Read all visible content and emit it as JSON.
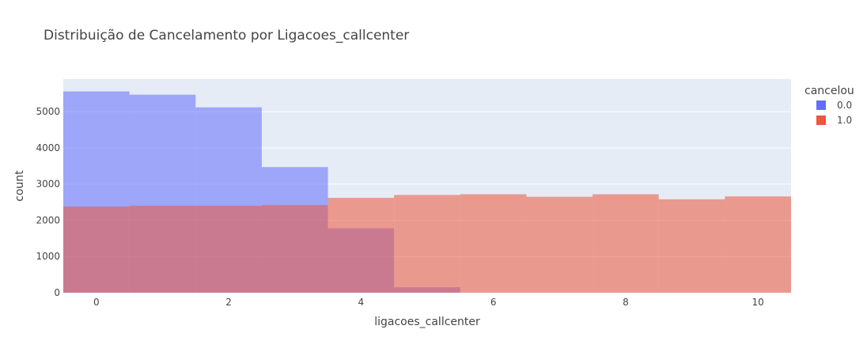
{
  "chart_data": {
    "type": "bar",
    "barmode": "overlay",
    "title": "Distribuição de Cancelamento por Ligacoes_callcenter",
    "xlabel": "ligacoes_callcenter",
    "ylabel": "count",
    "xlim": [
      -0.5,
      10.5
    ],
    "ylim": [
      0,
      5900
    ],
    "xticks": [
      0,
      2,
      4,
      6,
      8,
      10
    ],
    "yticks": [
      0,
      1000,
      2000,
      3000,
      4000,
      5000
    ],
    "grid": true,
    "legend": {
      "title": "cancelou",
      "placement": "top-right"
    },
    "x": [
      0,
      1,
      2,
      3,
      4,
      5,
      6,
      7,
      8,
      9,
      10
    ],
    "series": [
      {
        "name": "0.0",
        "color": "#636efa",
        "values": [
          5560,
          5470,
          5120,
          3470,
          1780,
          150,
          0,
          0,
          0,
          0,
          0
        ]
      },
      {
        "name": "1.0",
        "color": "#ef553b",
        "values": [
          2380,
          2400,
          2400,
          2420,
          2620,
          2700,
          2720,
          2650,
          2720,
          2580,
          2660
        ]
      }
    ]
  },
  "colors": {
    "plot_bg": "#e5ecf6",
    "grid": "#ffffff",
    "text": "#444444"
  }
}
